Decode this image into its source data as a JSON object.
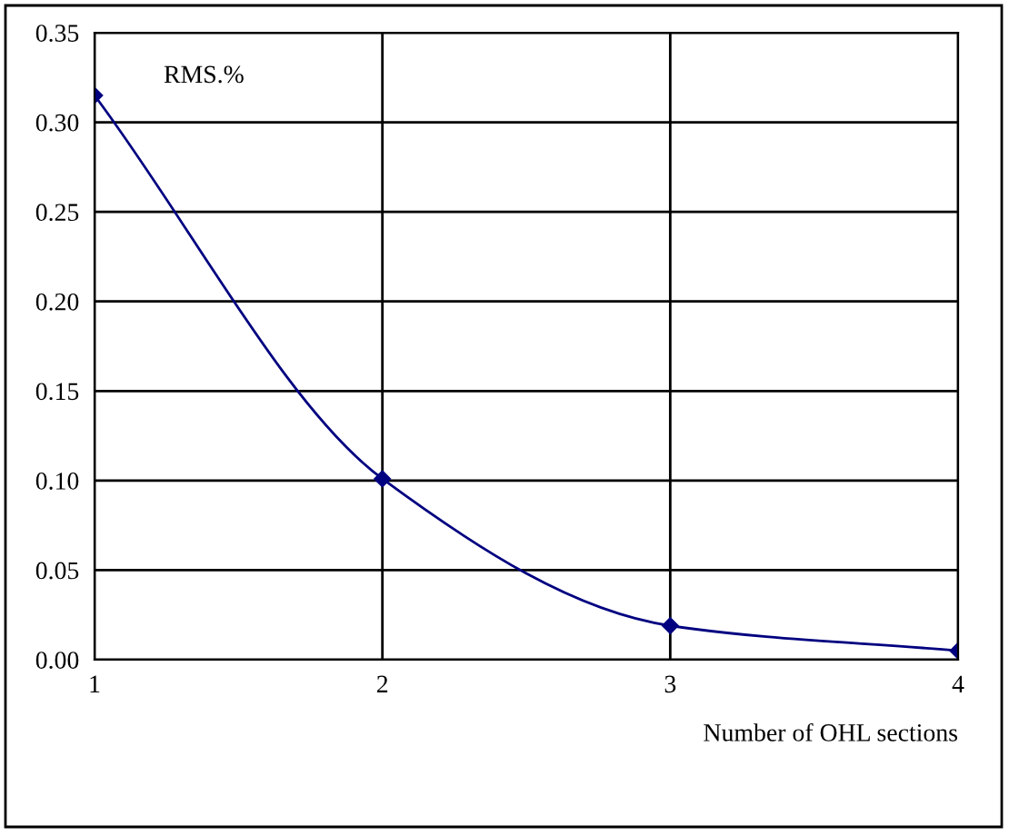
{
  "chart_data": {
    "type": "line",
    "ylabel": "RMS.%",
    "xlabel": "Number of OHL sections",
    "x": [
      1,
      2,
      3,
      4
    ],
    "series": [
      {
        "color": "#000080",
        "values": [
          0.315,
          0.101,
          0.019,
          0.005
        ]
      }
    ],
    "xlim": [
      1,
      4
    ],
    "xticks": [
      1,
      2,
      3,
      4
    ],
    "ylim": [
      0,
      0.35
    ],
    "yticks": [
      {
        "value": 0,
        "label": "0.00"
      },
      {
        "value": 0.05,
        "label": "0.05"
      },
      {
        "value": 0.1,
        "label": "0.10"
      },
      {
        "value": 0.15,
        "label": "0.15"
      },
      {
        "value": 0.2,
        "label": "0.20"
      },
      {
        "value": 0.25,
        "label": "0.25"
      },
      {
        "value": 0.3,
        "label": "0.30"
      },
      {
        "value": 0.35,
        "label": "0.35"
      }
    ],
    "grid": true,
    "marker": "diamond",
    "line_style": "solid",
    "legend": false
  }
}
